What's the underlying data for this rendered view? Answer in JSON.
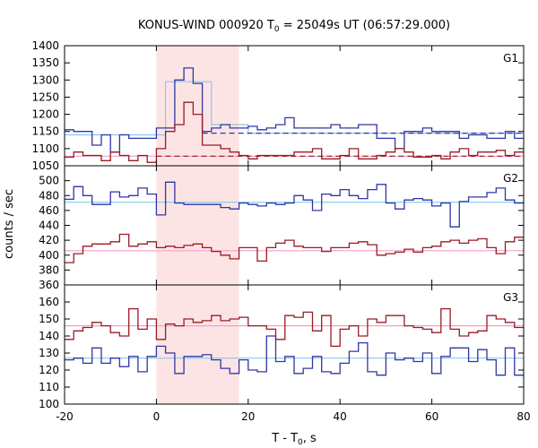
{
  "figure": {
    "title_prefix": "KONUS-WIND 000920 T",
    "title_sub": "0",
    "title_suffix": " = 25049s UT (06:57:29.000)",
    "ylabel": "counts / sec",
    "xlabel_prefix": "T - T",
    "xlabel_sub": "0",
    "xlabel_suffix": ", s"
  },
  "chart_data": {
    "type": "line",
    "x_range": [
      -20,
      80
    ],
    "x_ticks": [
      -20,
      0,
      20,
      40,
      60,
      80
    ],
    "highlight": {
      "x": [
        0,
        18
      ],
      "color": "#fde4e4"
    },
    "colors": {
      "blue": "#2e37a6",
      "red": "#9b1a24",
      "light_blue": "#86c8ee",
      "pink": "#f2a0c8"
    },
    "bin_edges": [
      -20,
      -18,
      -16,
      -14,
      -12,
      -10,
      -8,
      -6,
      -4,
      -2,
      0,
      2,
      4,
      6,
      8,
      10,
      12,
      14,
      16,
      18,
      20,
      22,
      24,
      26,
      28,
      30,
      32,
      34,
      36,
      38,
      40,
      42,
      44,
      46,
      48,
      50,
      52,
      54,
      56,
      58,
      60,
      62,
      64,
      66,
      68,
      70,
      72,
      74,
      76,
      78,
      80
    ],
    "panels": [
      {
        "label": "G1",
        "ylim": [
          1050,
          1400
        ],
        "yticks": [
          1050,
          1100,
          1150,
          1200,
          1250,
          1300,
          1350,
          1400
        ],
        "series": [
          {
            "color": "blue",
            "values": [
              1155,
              1150,
              1150,
              1110,
              1140,
              1090,
              1140,
              1130,
              1130,
              1130,
              1160,
              1160,
              1300,
              1335,
              1290,
              1150,
              1160,
              1170,
              1160,
              1160,
              1165,
              1155,
              1160,
              1170,
              1190,
              1160,
              1160,
              1160,
              1160,
              1170,
              1160,
              1160,
              1170,
              1170,
              1130,
              1130,
              1100,
              1150,
              1150,
              1160,
              1150,
              1150,
              1150,
              1130,
              1140,
              1140,
              1130,
              1130,
              1150,
              1130
            ]
          },
          {
            "color": "red",
            "values": [
              1075,
              1090,
              1080,
              1080,
              1065,
              1090,
              1080,
              1065,
              1080,
              1060,
              1100,
              1150,
              1170,
              1235,
              1200,
              1110,
              1110,
              1100,
              1090,
              1080,
              1070,
              1080,
              1080,
              1080,
              1080,
              1090,
              1090,
              1100,
              1070,
              1070,
              1080,
              1100,
              1070,
              1070,
              1080,
              1090,
              1100,
              1090,
              1075,
              1075,
              1080,
              1070,
              1090,
              1100,
              1080,
              1090,
              1090,
              1095,
              1080,
              1090
            ]
          }
        ],
        "fit_lines": [
          {
            "color": "light_blue",
            "style": "step",
            "x": [
              -20,
              2,
              2,
              12,
              12,
              20,
              20,
              80
            ],
            "y": [
              1140,
              1140,
              1295,
              1295,
              1170,
              1170,
              1145,
              1145
            ]
          },
          {
            "color": "blue",
            "style": "dashed",
            "x": [
              10,
              80
            ],
            "y": [
              1145,
              1145
            ]
          },
          {
            "color": "pink",
            "style": "solid",
            "x": [
              -20,
              80
            ],
            "y": [
              1078,
              1078
            ]
          },
          {
            "color": "red",
            "style": "dashed",
            "x": [
              0,
              80
            ],
            "y": [
              1078,
              1078
            ]
          }
        ]
      },
      {
        "label": "G2",
        "ylim": [
          360,
          520
        ],
        "yticks": [
          360,
          380,
          400,
          420,
          440,
          460,
          480,
          500
        ],
        "series": [
          {
            "color": "blue",
            "values": [
              475,
              492,
              480,
              468,
              468,
              485,
              478,
              480,
              490,
              482,
              454,
              498,
              470,
              468,
              468,
              468,
              468,
              464,
              462,
              470,
              468,
              466,
              470,
              468,
              470,
              480,
              474,
              460,
              482,
              480,
              488,
              480,
              476,
              488,
              495,
              470,
              462,
              474,
              476,
              474,
              466,
              470,
              438,
              472,
              478,
              478,
              484,
              490,
              474,
              470
            ]
          },
          {
            "color": "red",
            "values": [
              390,
              402,
              412,
              415,
              415,
              418,
              428,
              412,
              415,
              418,
              410,
              412,
              410,
              413,
              415,
              410,
              405,
              400,
              395,
              410,
              410,
              392,
              410,
              416,
              420,
              412,
              410,
              410,
              405,
              410,
              410,
              416,
              418,
              414,
              400,
              402,
              404,
              408,
              404,
              410,
              412,
              418,
              420,
              416,
              420,
              422,
              410,
              402,
              418,
              424
            ]
          }
        ],
        "fit_lines": [
          {
            "color": "light_blue",
            "style": "solid",
            "x": [
              -20,
              80
            ],
            "y": [
              471,
              471
            ]
          },
          {
            "color": "pink",
            "style": "solid",
            "x": [
              -20,
              80
            ],
            "y": [
              406,
              406
            ]
          }
        ]
      },
      {
        "label": "G3",
        "ylim": [
          100,
          170
        ],
        "yticks": [
          100,
          110,
          120,
          130,
          140,
          150,
          160
        ],
        "series": [
          {
            "color": "blue",
            "values": [
              126,
              127,
              124,
              133,
              124,
              127,
              122,
              128,
              119,
              128,
              134,
              130,
              118,
              128,
              128,
              129,
              126,
              121,
              118,
              126,
              120,
              119,
              140,
              125,
              128,
              118,
              121,
              128,
              119,
              118,
              124,
              131,
              136,
              119,
              117,
              130,
              126,
              127,
              125,
              130,
              118,
              128,
              133,
              133,
              125,
              132,
              126,
              117,
              133,
              117
            ]
          },
          {
            "color": "red",
            "values": [
              138,
              143,
              145,
              148,
              146,
              142,
              140,
              156,
              144,
              150,
              138,
              147,
              146,
              150,
              148,
              149,
              152,
              149,
              150,
              151,
              146,
              146,
              144,
              138,
              152,
              151,
              154,
              143,
              152,
              134,
              144,
              146,
              140,
              150,
              148,
              152,
              152,
              146,
              145,
              144,
              142,
              156,
              144,
              140,
              142,
              143,
              152,
              150,
              148,
              145
            ]
          }
        ],
        "fit_lines": [
          {
            "color": "light_blue",
            "style": "solid",
            "x": [
              -20,
              80
            ],
            "y": [
              127,
              127
            ]
          },
          {
            "color": "pink",
            "style": "solid",
            "x": [
              -20,
              80
            ],
            "y": [
              146,
              146
            ]
          }
        ]
      }
    ]
  }
}
